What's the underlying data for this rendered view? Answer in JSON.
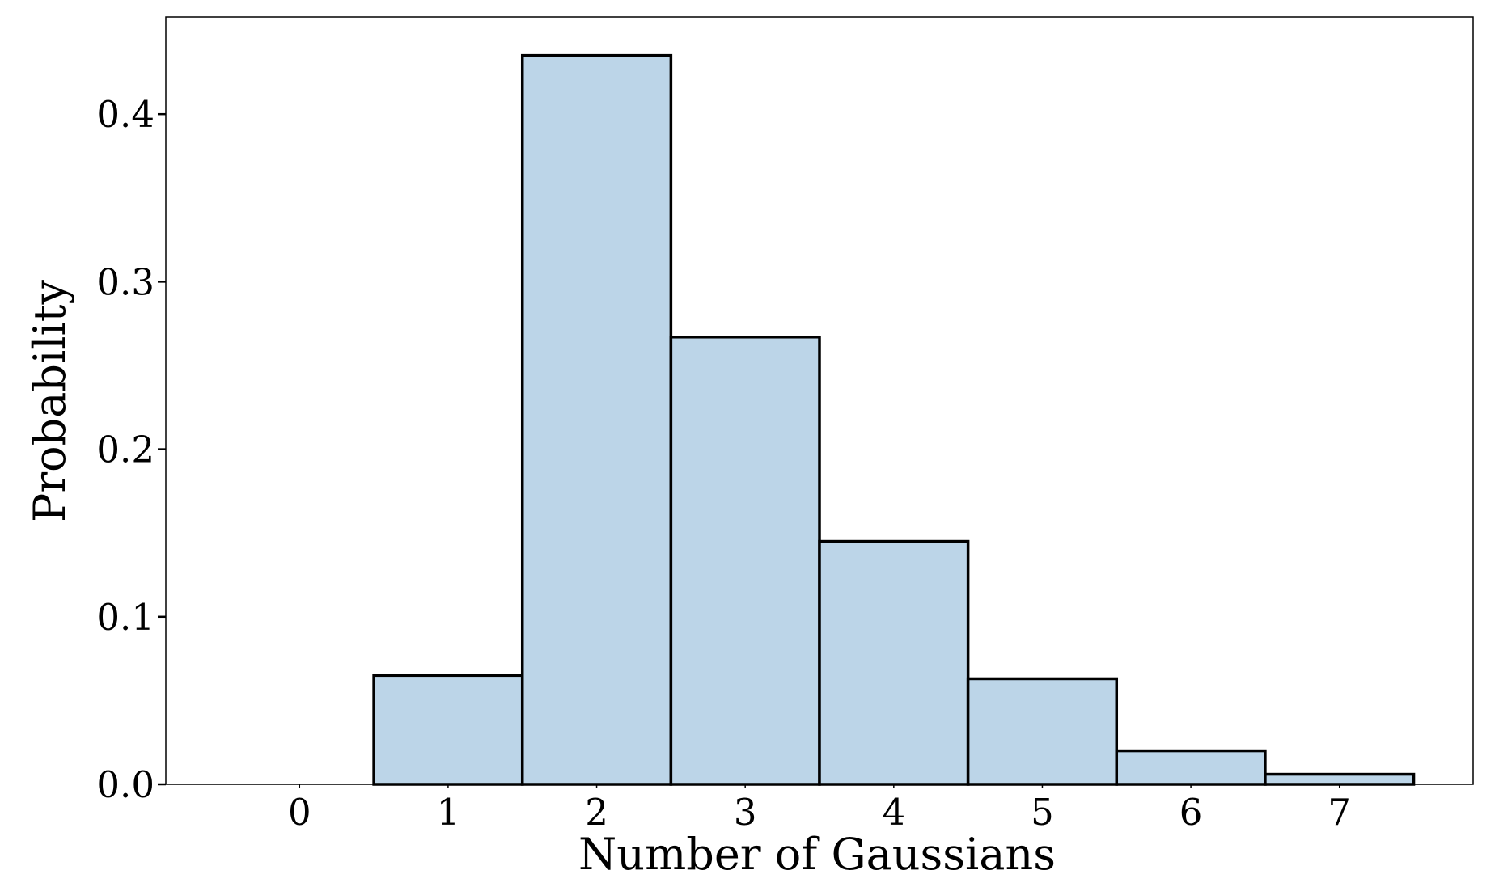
{
  "chart_data": {
    "type": "histogram",
    "xlabel": "Number of Gaussians",
    "ylabel": "Probability",
    "bins": [
      -0.5,
      0.5,
      1.5,
      2.5,
      3.5,
      4.5,
      5.5,
      6.5,
      7.5
    ],
    "values": [
      0,
      0.065,
      0.435,
      0.267,
      0.145,
      0.063,
      0.02,
      0.006
    ],
    "color": "#bcd5e8",
    "edgecolor": "#000000",
    "xlim": [
      -0.9,
      7.9
    ],
    "xticks": [
      0,
      1,
      2,
      3,
      4,
      5,
      6,
      7
    ],
    "ylim": [
      0,
      0.458
    ],
    "yticks": [
      {
        "value": 0,
        "label": "0.0"
      },
      0.1,
      0.2,
      0.3,
      0.4
    ],
    "grid": false
  }
}
